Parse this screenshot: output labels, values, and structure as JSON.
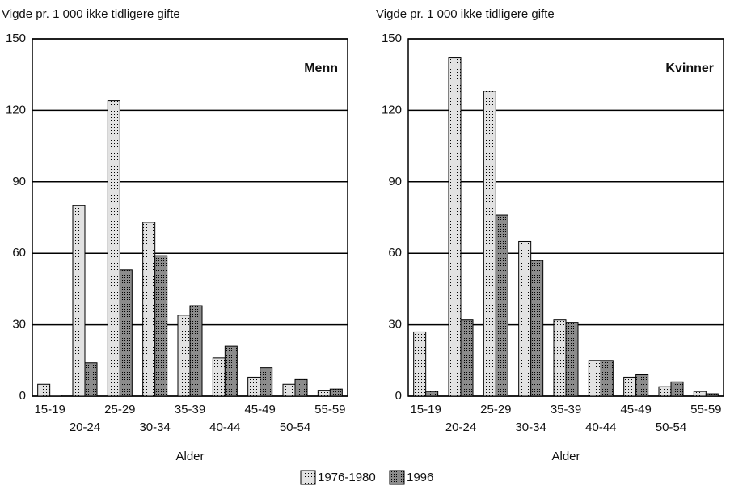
{
  "chart_data": [
    {
      "type": "bar",
      "title": "Vigde pr. 1 000 ikke tidligere gifte",
      "panel_label": "Menn",
      "x_label": "Alder",
      "categories": [
        "15-19",
        "20-24",
        "25-29",
        "30-34",
        "35-39",
        "40-44",
        "45-49",
        "50-54",
        "55-59"
      ],
      "series": [
        {
          "name": "1976-1980",
          "color": "#e2e2e2",
          "values": [
            5,
            80,
            124,
            73,
            34,
            16,
            8,
            5,
            2.5
          ]
        },
        {
          "name": "1996",
          "color": "#8c8c8c",
          "values": [
            0.5,
            14,
            53,
            59,
            38,
            21,
            12,
            7,
            3
          ]
        }
      ],
      "ylim": [
        0,
        150
      ],
      "yticks": [
        0,
        30,
        60,
        90,
        120,
        150
      ],
      "grid": true
    },
    {
      "type": "bar",
      "title": "Vigde pr. 1 000 ikke tidligere gifte",
      "panel_label": "Kvinner",
      "x_label": "Alder",
      "categories": [
        "15-19",
        "20-24",
        "25-29",
        "30-34",
        "35-39",
        "40-44",
        "45-49",
        "50-54",
        "55-59"
      ],
      "series": [
        {
          "values": [
            27,
            142,
            128,
            65,
            32,
            15,
            8,
            4,
            2
          ]
        },
        {
          "values": [
            2,
            32,
            76,
            57,
            31,
            15,
            9,
            6,
            1
          ]
        }
      ],
      "ylim": [
        0,
        150
      ],
      "yticks": [
        0,
        30,
        60,
        90,
        120,
        150
      ],
      "grid": true
    }
  ]
}
